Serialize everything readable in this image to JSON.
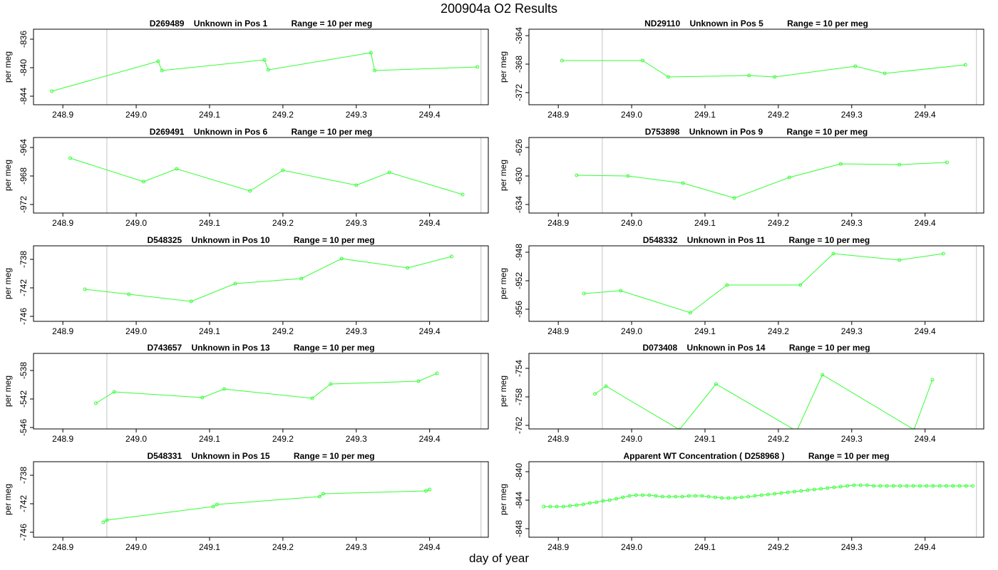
{
  "page": {
    "title": "200904a  O2 Results",
    "x_axis_title": "day of year"
  },
  "style": {
    "line_color": "#33ff33",
    "marker_color": "#33ff33",
    "vline_color": "#cccccc",
    "axis_color": "#000000"
  },
  "chart_data": [
    {
      "type": "line",
      "title": "D269489    Unknown in Pos 1          Range = 10 per meg",
      "xlabel": "",
      "ylabel": "per meg",
      "xlim": [
        248.86,
        249.48
      ],
      "ylim": [
        -845,
        -835
      ],
      "x_ticks": [
        248.9,
        249.0,
        249.1,
        249.2,
        249.3,
        249.4
      ],
      "x_tick_labels": [
        "248.9",
        "249.0",
        "249.1",
        "249.2",
        "249.3",
        "249.4"
      ],
      "y_ticks": [
        -836,
        -840,
        -844
      ],
      "y_tick_labels": [
        "-836",
        "-840",
        "-844"
      ],
      "vlines": [
        248.96,
        249.47
      ],
      "x": [
        248.885,
        249.03,
        249.035,
        249.175,
        249.18,
        249.32,
        249.325,
        249.465
      ],
      "y": [
        -843.3,
        -839.1,
        -840.4,
        -838.9,
        -840.3,
        -837.9,
        -840.4,
        -839.9
      ]
    },
    {
      "type": "line",
      "title": "ND29110    Unknown in Pos 5          Range = 10 per meg",
      "xlabel": "",
      "ylabel": "per meg",
      "xlim": [
        248.86,
        249.48
      ],
      "ylim": [
        -373.5,
        -363.5
      ],
      "x_ticks": [
        248.9,
        249.0,
        249.1,
        249.2,
        249.3,
        249.4
      ],
      "x_tick_labels": [
        "248.9",
        "249.0",
        "249.1",
        "249.2",
        "249.3",
        "249.4"
      ],
      "y_ticks": [
        -364,
        -368,
        -372
      ],
      "y_tick_labels": [
        "-364",
        "-368",
        "-372"
      ],
      "vlines": [
        248.96,
        249.47
      ],
      "x": [
        248.905,
        249.015,
        249.05,
        249.16,
        249.195,
        249.305,
        249.345,
        249.455
      ],
      "y": [
        -367.5,
        -367.5,
        -369.8,
        -369.6,
        -369.8,
        -368.3,
        -369.3,
        -368.1
      ]
    },
    {
      "type": "line",
      "title": "D269491    Unknown in Pos 6          Range = 10 per meg",
      "xlabel": "",
      "ylabel": "per meg",
      "xlim": [
        248.86,
        249.48
      ],
      "ylim": [
        -973,
        -963
      ],
      "x_ticks": [
        248.9,
        249.0,
        249.1,
        249.2,
        249.3,
        249.4
      ],
      "x_tick_labels": [
        "248.9",
        "249.0",
        "249.1",
        "249.2",
        "249.3",
        "249.4"
      ],
      "y_ticks": [
        -964,
        -968,
        -972
      ],
      "y_tick_labels": [
        "-964",
        "-968",
        "-972"
      ],
      "vlines": [
        248.96,
        249.47
      ],
      "x": [
        248.91,
        249.01,
        249.055,
        249.155,
        249.2,
        249.3,
        249.345,
        249.445
      ],
      "y": [
        -965.5,
        -968.8,
        -967.0,
        -970.1,
        -967.2,
        -969.3,
        -967.5,
        -970.6
      ]
    },
    {
      "type": "line",
      "title": "D753898    Unknown in Pos 9          Range = 10 per meg",
      "xlabel": "",
      "ylabel": "per meg",
      "xlim": [
        248.86,
        249.48
      ],
      "ylim": [
        -635,
        -625
      ],
      "x_ticks": [
        248.9,
        249.0,
        249.1,
        249.2,
        249.3,
        249.4
      ],
      "x_tick_labels": [
        "248.9",
        "249.0",
        "249.1",
        "249.2",
        "249.3",
        "249.4"
      ],
      "y_ticks": [
        -626,
        -630,
        -634
      ],
      "y_tick_labels": [
        "-626",
        "-630",
        "-634"
      ],
      "vlines": [
        248.96,
        249.47
      ],
      "x": [
        248.925,
        248.995,
        249.07,
        249.14,
        249.215,
        249.285,
        249.365,
        249.43
      ],
      "y": [
        -629.9,
        -630.0,
        -631.0,
        -633.1,
        -630.2,
        -628.3,
        -628.4,
        -628.1
      ]
    },
    {
      "type": "line",
      "title": "D548325    Unknown in Pos 10          Range = 10 per meg",
      "xlabel": "",
      "ylabel": "per meg",
      "xlim": [
        248.86,
        249.48
      ],
      "ylim": [
        -746.5,
        -736.5
      ],
      "x_ticks": [
        248.9,
        249.0,
        249.1,
        249.2,
        249.3,
        249.4
      ],
      "x_tick_labels": [
        "248.9",
        "249.0",
        "249.1",
        "249.2",
        "249.3",
        "249.4"
      ],
      "y_ticks": [
        -738,
        -742,
        -746
      ],
      "y_tick_labels": [
        "-738",
        "-742",
        "-746"
      ],
      "vlines": [
        248.96,
        249.47
      ],
      "x": [
        248.93,
        248.99,
        249.075,
        249.135,
        249.225,
        249.28,
        249.37,
        249.43
      ],
      "y": [
        -742.2,
        -742.9,
        -743.9,
        -741.4,
        -740.7,
        -737.9,
        -739.2,
        -737.6
      ]
    },
    {
      "type": "line",
      "title": "D548332    Unknown in Pos 11          Range = 10 per meg",
      "xlabel": "",
      "ylabel": "per meg",
      "xlim": [
        248.86,
        249.48
      ],
      "ylim": [
        -957.5,
        -947.5
      ],
      "x_ticks": [
        248.9,
        249.0,
        249.1,
        249.2,
        249.3,
        249.4
      ],
      "x_tick_labels": [
        "248.9",
        "249.0",
        "249.1",
        "249.2",
        "249.3",
        "249.4"
      ],
      "y_ticks": [
        -948,
        -952,
        -956
      ],
      "y_tick_labels": [
        "-948",
        "-952",
        "-956"
      ],
      "vlines": [
        248.96,
        249.47
      ],
      "x": [
        248.935,
        248.985,
        249.08,
        249.13,
        249.23,
        249.275,
        249.365,
        249.425
      ],
      "y": [
        -953.8,
        -953.4,
        -956.5,
        -952.6,
        -952.6,
        -948.2,
        -949.1,
        -948.2
      ]
    },
    {
      "type": "line",
      "title": "D743657    Unknown in Pos 13          Range = 10 per meg",
      "xlabel": "",
      "ylabel": "per meg",
      "xlim": [
        248.86,
        249.48
      ],
      "ylim": [
        -546,
        -536
      ],
      "x_ticks": [
        248.9,
        249.0,
        249.1,
        249.2,
        249.3,
        249.4
      ],
      "x_tick_labels": [
        "248.9",
        "249.0",
        "249.1",
        "249.2",
        "249.3",
        "249.4"
      ],
      "y_ticks": [
        -538,
        -542,
        -546
      ],
      "y_tick_labels": [
        "-538",
        "-542",
        "-546"
      ],
      "vlines": [
        248.96,
        249.47
      ],
      "x": [
        248.945,
        248.97,
        249.09,
        249.12,
        249.24,
        249.265,
        249.385,
        249.41
      ],
      "y": [
        -542.6,
        -541.0,
        -541.8,
        -540.6,
        -541.9,
        -539.9,
        -539.5,
        -538.4
      ]
    },
    {
      "type": "line",
      "title": "D073408    Unknown in Pos 14          Range = 10 per meg",
      "xlabel": "",
      "ylabel": "per meg",
      "xlim": [
        248.86,
        249.48
      ],
      "ylim": [
        -762.3,
        -752.3
      ],
      "x_ticks": [
        248.9,
        249.0,
        249.1,
        249.2,
        249.3,
        249.4
      ],
      "x_tick_labels": [
        "248.9",
        "249.0",
        "249.1",
        "249.2",
        "249.3",
        "249.4"
      ],
      "y_ticks": [
        -754,
        -758,
        -762
      ],
      "y_tick_labels": [
        "-754",
        "-758",
        "-762"
      ],
      "vlines": [
        248.96,
        249.47
      ],
      "x": [
        248.95,
        248.965,
        249.065,
        249.115,
        249.225,
        249.26,
        249.385,
        249.41
      ],
      "y": [
        -757.6,
        -756.5,
        -762.6,
        -756.2,
        -762.8,
        -754.9,
        -762.6,
        -755.6
      ]
    },
    {
      "type": "line",
      "title": "D548331    Unknown in Pos 15          Range = 10 per meg",
      "xlabel": "",
      "ylabel": "per meg",
      "xlim": [
        248.86,
        249.48
      ],
      "ylim": [
        -746.5,
        -736.5
      ],
      "x_ticks": [
        248.9,
        249.0,
        249.1,
        249.2,
        249.3,
        249.4
      ],
      "x_tick_labels": [
        "248.9",
        "249.0",
        "249.1",
        "249.2",
        "249.3",
        "249.4"
      ],
      "y_ticks": [
        -738,
        -742,
        -746
      ],
      "y_tick_labels": [
        "-738",
        "-742",
        "-746"
      ],
      "vlines": [
        248.96,
        249.47
      ],
      "x": [
        248.955,
        248.96,
        249.105,
        249.11,
        249.25,
        249.255,
        249.395,
        249.4
      ],
      "y": [
        -744.6,
        -744.3,
        -742.4,
        -742.1,
        -741.0,
        -740.6,
        -740.2,
        -740.0
      ]
    },
    {
      "type": "line",
      "title": "Apparent WT Concentration ( D258968 )          Range = 10 per meg",
      "xlabel": "",
      "ylabel": "per meg",
      "xlim": [
        248.86,
        249.48
      ],
      "ylim": [
        -849,
        -839
      ],
      "x_ticks": [
        248.9,
        249.0,
        249.1,
        249.2,
        249.3,
        249.4
      ],
      "x_tick_labels": [
        "248.9",
        "249.0",
        "249.1",
        "249.2",
        "249.3",
        "249.4"
      ],
      "y_ticks": [
        -840,
        -844,
        -848
      ],
      "y_tick_labels": [
        "-840",
        "-844",
        "-848"
      ],
      "vlines": [
        248.96,
        249.47
      ],
      "x": [
        248.88,
        248.889,
        248.898,
        248.907,
        248.916,
        248.925,
        248.934,
        248.943,
        248.952,
        248.961,
        248.97,
        248.979,
        248.988,
        248.997,
        249.006,
        249.015,
        249.024,
        249.033,
        249.042,
        249.051,
        249.06,
        249.069,
        249.078,
        249.087,
        249.096,
        249.105,
        249.114,
        249.123,
        249.132,
        249.141,
        249.15,
        249.159,
        249.168,
        249.177,
        249.186,
        249.195,
        249.204,
        249.213,
        249.222,
        249.231,
        249.24,
        249.249,
        249.258,
        249.267,
        249.276,
        249.285,
        249.294,
        249.303,
        249.312,
        249.321,
        249.33,
        249.339,
        249.348,
        249.357,
        249.366,
        249.375,
        249.384,
        249.393,
        249.402,
        249.411,
        249.42,
        249.429,
        249.438,
        249.447,
        249.456,
        249.465
      ],
      "y": [
        -844.9,
        -844.9,
        -844.9,
        -844.9,
        -844.8,
        -844.7,
        -844.6,
        -844.4,
        -844.3,
        -844.1,
        -844.0,
        -843.8,
        -843.6,
        -843.4,
        -843.3,
        -843.3,
        -843.3,
        -843.4,
        -843.5,
        -843.5,
        -843.5,
        -843.5,
        -843.4,
        -843.4,
        -843.4,
        -843.5,
        -843.6,
        -843.7,
        -843.7,
        -843.7,
        -843.6,
        -843.5,
        -843.4,
        -843.3,
        -843.2,
        -843.1,
        -843.0,
        -842.9,
        -842.8,
        -842.7,
        -842.6,
        -842.5,
        -842.4,
        -842.3,
        -842.2,
        -842.1,
        -842.0,
        -841.9,
        -841.9,
        -841.9,
        -842.0,
        -842.0,
        -842.0,
        -842.0,
        -842.0,
        -842.0,
        -842.0,
        -842.0,
        -842.0,
        -842.0,
        -842.0,
        -842.0,
        -842.0,
        -842.0,
        -842.0,
        -842.0
      ]
    }
  ]
}
